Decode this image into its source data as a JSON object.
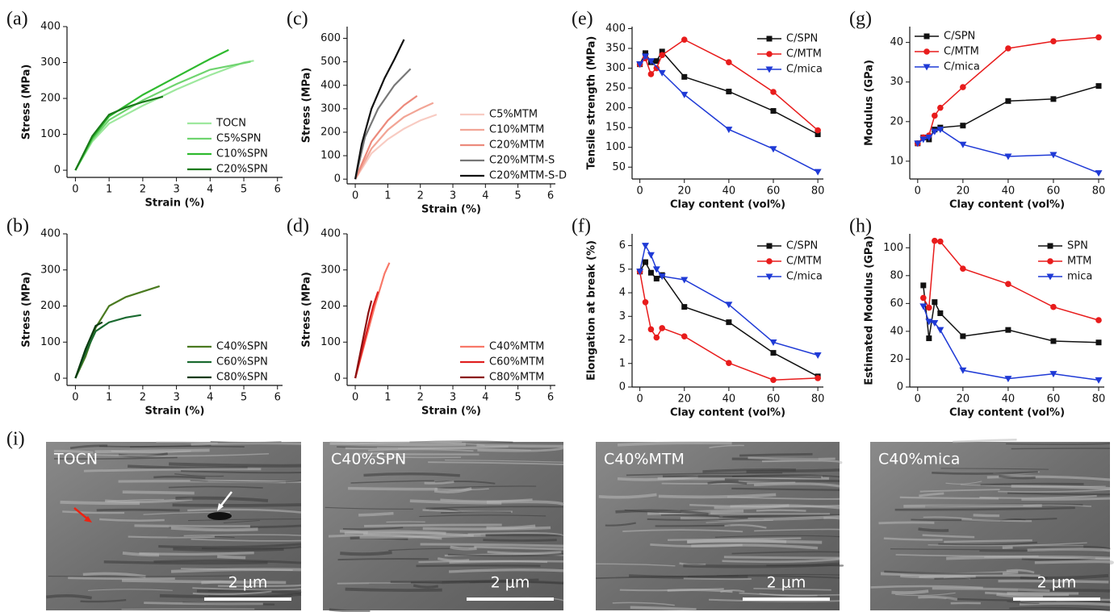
{
  "chart_data": [
    {
      "type": "line",
      "panel_label": "(a)",
      "xlabel": "Strain (%)",
      "ylabel": "Stress (MPa)",
      "xlim": [
        -0.25,
        6.15
      ],
      "ylim": [
        -20,
        400
      ],
      "xticks": [
        0,
        1,
        2,
        3,
        4,
        5,
        6
      ],
      "yticks": [
        0,
        100,
        200,
        300,
        400
      ],
      "legend": "lower right",
      "series": [
        {
          "name": "TOCN",
          "color": "#9de89d",
          "x": [
            0,
            0.5,
            1,
            2,
            3,
            4,
            5,
            5.3
          ],
          "values": [
            0,
            80,
            130,
            180,
            225,
            265,
            300,
            305
          ]
        },
        {
          "name": "C5%SPN",
          "color": "#6fd46f",
          "x": [
            0,
            0.5,
            1,
            2,
            3,
            4,
            5.2
          ],
          "values": [
            0,
            85,
            140,
            195,
            240,
            280,
            302
          ]
        },
        {
          "name": "C10%SPN",
          "color": "#2fba2f",
          "x": [
            0,
            0.5,
            1,
            2,
            3,
            4,
            4.55
          ],
          "values": [
            0,
            90,
            150,
            210,
            260,
            310,
            335
          ]
        },
        {
          "name": "C20%SPN",
          "color": "#1a7a1a",
          "x": [
            0,
            0.5,
            1,
            1.5,
            2,
            2.6
          ],
          "values": [
            0,
            95,
            155,
            175,
            190,
            205
          ]
        }
      ]
    },
    {
      "type": "line",
      "panel_label": "(b)",
      "xlabel": "Strain (%)",
      "ylabel": "Stress (MPa)",
      "xlim": [
        -0.25,
        6.15
      ],
      "ylim": [
        -20,
        400
      ],
      "xticks": [
        0,
        1,
        2,
        3,
        4,
        5,
        6
      ],
      "yticks": [
        0,
        100,
        200,
        300,
        400
      ],
      "legend": "lower right",
      "series": [
        {
          "name": "C40%SPN",
          "color": "#4a7a20",
          "x": [
            0,
            0.3,
            0.6,
            1,
            1.5,
            2,
            2.5
          ],
          "values": [
            0,
            60,
            140,
            200,
            225,
            240,
            255
          ]
        },
        {
          "name": "C60%SPN",
          "color": "#1a6a30",
          "x": [
            0,
            0.3,
            0.6,
            1,
            1.5,
            1.95
          ],
          "values": [
            0,
            70,
            130,
            155,
            168,
            175
          ]
        },
        {
          "name": "C80%SPN",
          "color": "#0a3a10",
          "x": [
            0,
            0.3,
            0.6,
            0.8
          ],
          "values": [
            0,
            80,
            145,
            155
          ]
        }
      ]
    },
    {
      "type": "line",
      "panel_label": "(c)",
      "xlabel": "Strain (%)",
      "ylabel": "Stress (MPa)",
      "xlim": [
        -0.25,
        6.15
      ],
      "ylim": [
        -20,
        650
      ],
      "xticks": [
        0,
        1,
        2,
        3,
        4,
        5,
        6
      ],
      "yticks": [
        0,
        100,
        200,
        300,
        400,
        500,
        600
      ],
      "legend": "lower right",
      "series": [
        {
          "name": "C5%MTM",
          "color": "#f8cbc2",
          "x": [
            0,
            0.5,
            1,
            1.5,
            2,
            2.5
          ],
          "values": [
            0,
            110,
            170,
            215,
            250,
            275
          ]
        },
        {
          "name": "C10%MTM",
          "color": "#f2a596",
          "x": [
            0,
            0.5,
            1,
            1.5,
            2,
            2.4
          ],
          "values": [
            0,
            130,
            210,
            265,
            300,
            325
          ]
        },
        {
          "name": "C20%MTM",
          "color": "#ec8a7c",
          "x": [
            0,
            0.5,
            1,
            1.5,
            1.9
          ],
          "values": [
            0,
            160,
            250,
            315,
            355
          ]
        },
        {
          "name": "C20%MTM-S",
          "color": "#777777",
          "x": [
            0,
            0.3,
            0.7,
            1.2,
            1.7
          ],
          "values": [
            0,
            180,
            300,
            400,
            470
          ]
        },
        {
          "name": "C20%MTM-S-D",
          "color": "#111111",
          "x": [
            0,
            0.2,
            0.5,
            0.9,
            1.2,
            1.5
          ],
          "values": [
            0,
            150,
            300,
            430,
            510,
            595
          ]
        }
      ]
    },
    {
      "type": "line",
      "panel_label": "(d)",
      "xlabel": "Strain (%)",
      "ylabel": "Stress (MPa)",
      "xlim": [
        -0.25,
        6.15
      ],
      "ylim": [
        -20,
        400
      ],
      "xticks": [
        0,
        1,
        2,
        3,
        4,
        5,
        6
      ],
      "yticks": [
        0,
        100,
        200,
        300,
        400
      ],
      "legend": "lower right",
      "series": [
        {
          "name": "C40%MTM",
          "color": "#f87868",
          "x": [
            0,
            0.3,
            0.6,
            0.9,
            1.05
          ],
          "values": [
            0,
            100,
            200,
            290,
            320
          ]
        },
        {
          "name": "C60%MTM",
          "color": "#e02020",
          "x": [
            0,
            0.3,
            0.55,
            0.7
          ],
          "values": [
            0,
            110,
            200,
            240
          ]
        },
        {
          "name": "C80%MTM",
          "color": "#8a1010",
          "x": [
            0,
            0.2,
            0.4,
            0.5
          ],
          "values": [
            0,
            90,
            180,
            215
          ]
        }
      ]
    },
    {
      "type": "line",
      "panel_label": "(e)",
      "xlabel": "Clay content (vol%)",
      "ylabel": "Tensile strength (MPa)",
      "xlim": [
        -3.5,
        82.5
      ],
      "ylim": [
        20,
        405
      ],
      "xticks": [
        0,
        20,
        40,
        60,
        80
      ],
      "yticks": [
        50,
        100,
        150,
        200,
        250,
        300,
        350,
        400
      ],
      "legend": "upper right",
      "legend_text_colored": true,
      "series": [
        {
          "name": "C/SPN",
          "color": "#111111",
          "marker": "square",
          "x": [
            0,
            2.5,
            5,
            7.5,
            10,
            20,
            40,
            60,
            80
          ],
          "values": [
            310,
            338,
            315,
            318,
            342,
            278,
            241,
            192,
            133
          ]
        },
        {
          "name": "C/MTM",
          "color": "#e81c1c",
          "marker": "circle",
          "x": [
            0,
            2.5,
            5,
            7.5,
            10,
            20,
            40,
            60,
            80
          ],
          "values": [
            310,
            325,
            285,
            300,
            333,
            372,
            315,
            240,
            143
          ]
        },
        {
          "name": "C/mica",
          "color": "#1f3ad6",
          "marker": "triangle-down",
          "x": [
            0,
            2.5,
            5,
            10,
            20,
            40,
            60,
            80
          ],
          "values": [
            310,
            330,
            318,
            288,
            233,
            145,
            96,
            38
          ]
        }
      ]
    },
    {
      "type": "line",
      "panel_label": "(f)",
      "xlabel": "Clay content (vol%)",
      "ylabel": "Elongation at break (%)",
      "xlim": [
        -3.5,
        82.5
      ],
      "ylim": [
        0,
        6.5
      ],
      "xticks": [
        0,
        20,
        40,
        60,
        80
      ],
      "yticks": [
        0,
        1,
        2,
        3,
        4,
        5,
        6
      ],
      "legend": "upper right",
      "legend_text_colored": true,
      "series": [
        {
          "name": "C/SPN",
          "color": "#111111",
          "marker": "square",
          "x": [
            0,
            2.5,
            5,
            7.5,
            10,
            20,
            40,
            60,
            80
          ],
          "values": [
            4.9,
            5.3,
            4.85,
            4.6,
            4.75,
            3.4,
            2.75,
            1.45,
            0.45
          ]
        },
        {
          "name": "C/MTM",
          "color": "#e81c1c",
          "marker": "circle",
          "x": [
            0,
            2.5,
            5,
            7.5,
            10,
            20,
            40,
            60,
            80
          ],
          "values": [
            4.9,
            3.6,
            2.45,
            2.1,
            2.5,
            2.15,
            1.02,
            0.3,
            0.38
          ]
        },
        {
          "name": "C/mica",
          "color": "#1f3ad6",
          "marker": "triangle-down",
          "x": [
            0,
            2.5,
            5,
            7.5,
            10,
            20,
            40,
            60,
            80
          ],
          "values": [
            4.9,
            6.0,
            5.6,
            5.0,
            4.7,
            4.55,
            3.5,
            1.9,
            1.35
          ]
        }
      ]
    },
    {
      "type": "line",
      "panel_label": "(g)",
      "xlabel": "Clay content (vol%)",
      "ylabel": "Modulus (GPa)",
      "xlim": [
        -3.5,
        82.5
      ],
      "ylim": [
        5.5,
        44
      ],
      "xticks": [
        0,
        20,
        40,
        60,
        80
      ],
      "yticks": [
        10,
        20,
        30,
        40
      ],
      "legend": "upper left",
      "legend_text_colored": true,
      "series": [
        {
          "name": "C/SPN",
          "color": "#111111",
          "marker": "square",
          "x": [
            0,
            2.5,
            5,
            7.5,
            10,
            20,
            40,
            60,
            80
          ],
          "values": [
            14.5,
            16,
            15.5,
            18,
            18.5,
            19,
            25.2,
            25.7,
            29
          ]
        },
        {
          "name": "C/MTM",
          "color": "#e81c1c",
          "marker": "circle",
          "x": [
            0,
            2.5,
            5,
            7.5,
            10,
            20,
            40,
            60,
            80
          ],
          "values": [
            14.5,
            16,
            16.5,
            21.5,
            23.5,
            28.7,
            38.5,
            40.3,
            41.3
          ]
        },
        {
          "name": "C/mica",
          "color": "#1f3ad6",
          "marker": "triangle-down",
          "x": [
            0,
            2.5,
            5,
            7.5,
            10,
            20,
            40,
            60,
            80
          ],
          "values": [
            14.5,
            15.5,
            16,
            17.5,
            18,
            14.2,
            11.2,
            11.6,
            7
          ]
        }
      ]
    },
    {
      "type": "line",
      "panel_label": "(h)",
      "xlabel": "Clay content (vol%)",
      "ylabel": "Estimated Modulus (GPa)",
      "xlim": [
        -3.5,
        82.5
      ],
      "ylim": [
        0,
        110
      ],
      "xticks": [
        0,
        20,
        40,
        60,
        80
      ],
      "yticks": [
        0,
        20,
        40,
        60,
        80,
        100
      ],
      "legend": "upper right",
      "legend_text_colored": true,
      "series": [
        {
          "name": "SPN",
          "color": "#111111",
          "marker": "square",
          "x": [
            2.5,
            5,
            7.5,
            10,
            20,
            40,
            60,
            80
          ],
          "values": [
            73,
            35,
            61,
            53,
            36.5,
            41,
            33,
            32
          ]
        },
        {
          "name": "MTM",
          "color": "#e81c1c",
          "marker": "circle",
          "x": [
            2.5,
            5,
            7.5,
            10,
            20,
            40,
            60,
            80
          ],
          "values": [
            64,
            57,
            105,
            104.5,
            85,
            74,
            57.5,
            48
          ]
        },
        {
          "name": "mica",
          "color": "#1f3ad6",
          "marker": "triangle-down",
          "x": [
            2.5,
            5,
            7.5,
            10,
            20,
            40,
            60,
            80
          ],
          "values": [
            58,
            47,
            46,
            41,
            12,
            6,
            9.5,
            5
          ]
        }
      ]
    }
  ],
  "sem": {
    "panel_label": "(i)",
    "images": [
      {
        "label": "TOCN",
        "scale_bar": "2 μm"
      },
      {
        "label": "C40%SPN",
        "scale_bar": "2 μm"
      },
      {
        "label": "C40%MTM",
        "scale_bar": "2 μm"
      },
      {
        "label": "C40%mica",
        "scale_bar": "2 μm"
      }
    ]
  }
}
